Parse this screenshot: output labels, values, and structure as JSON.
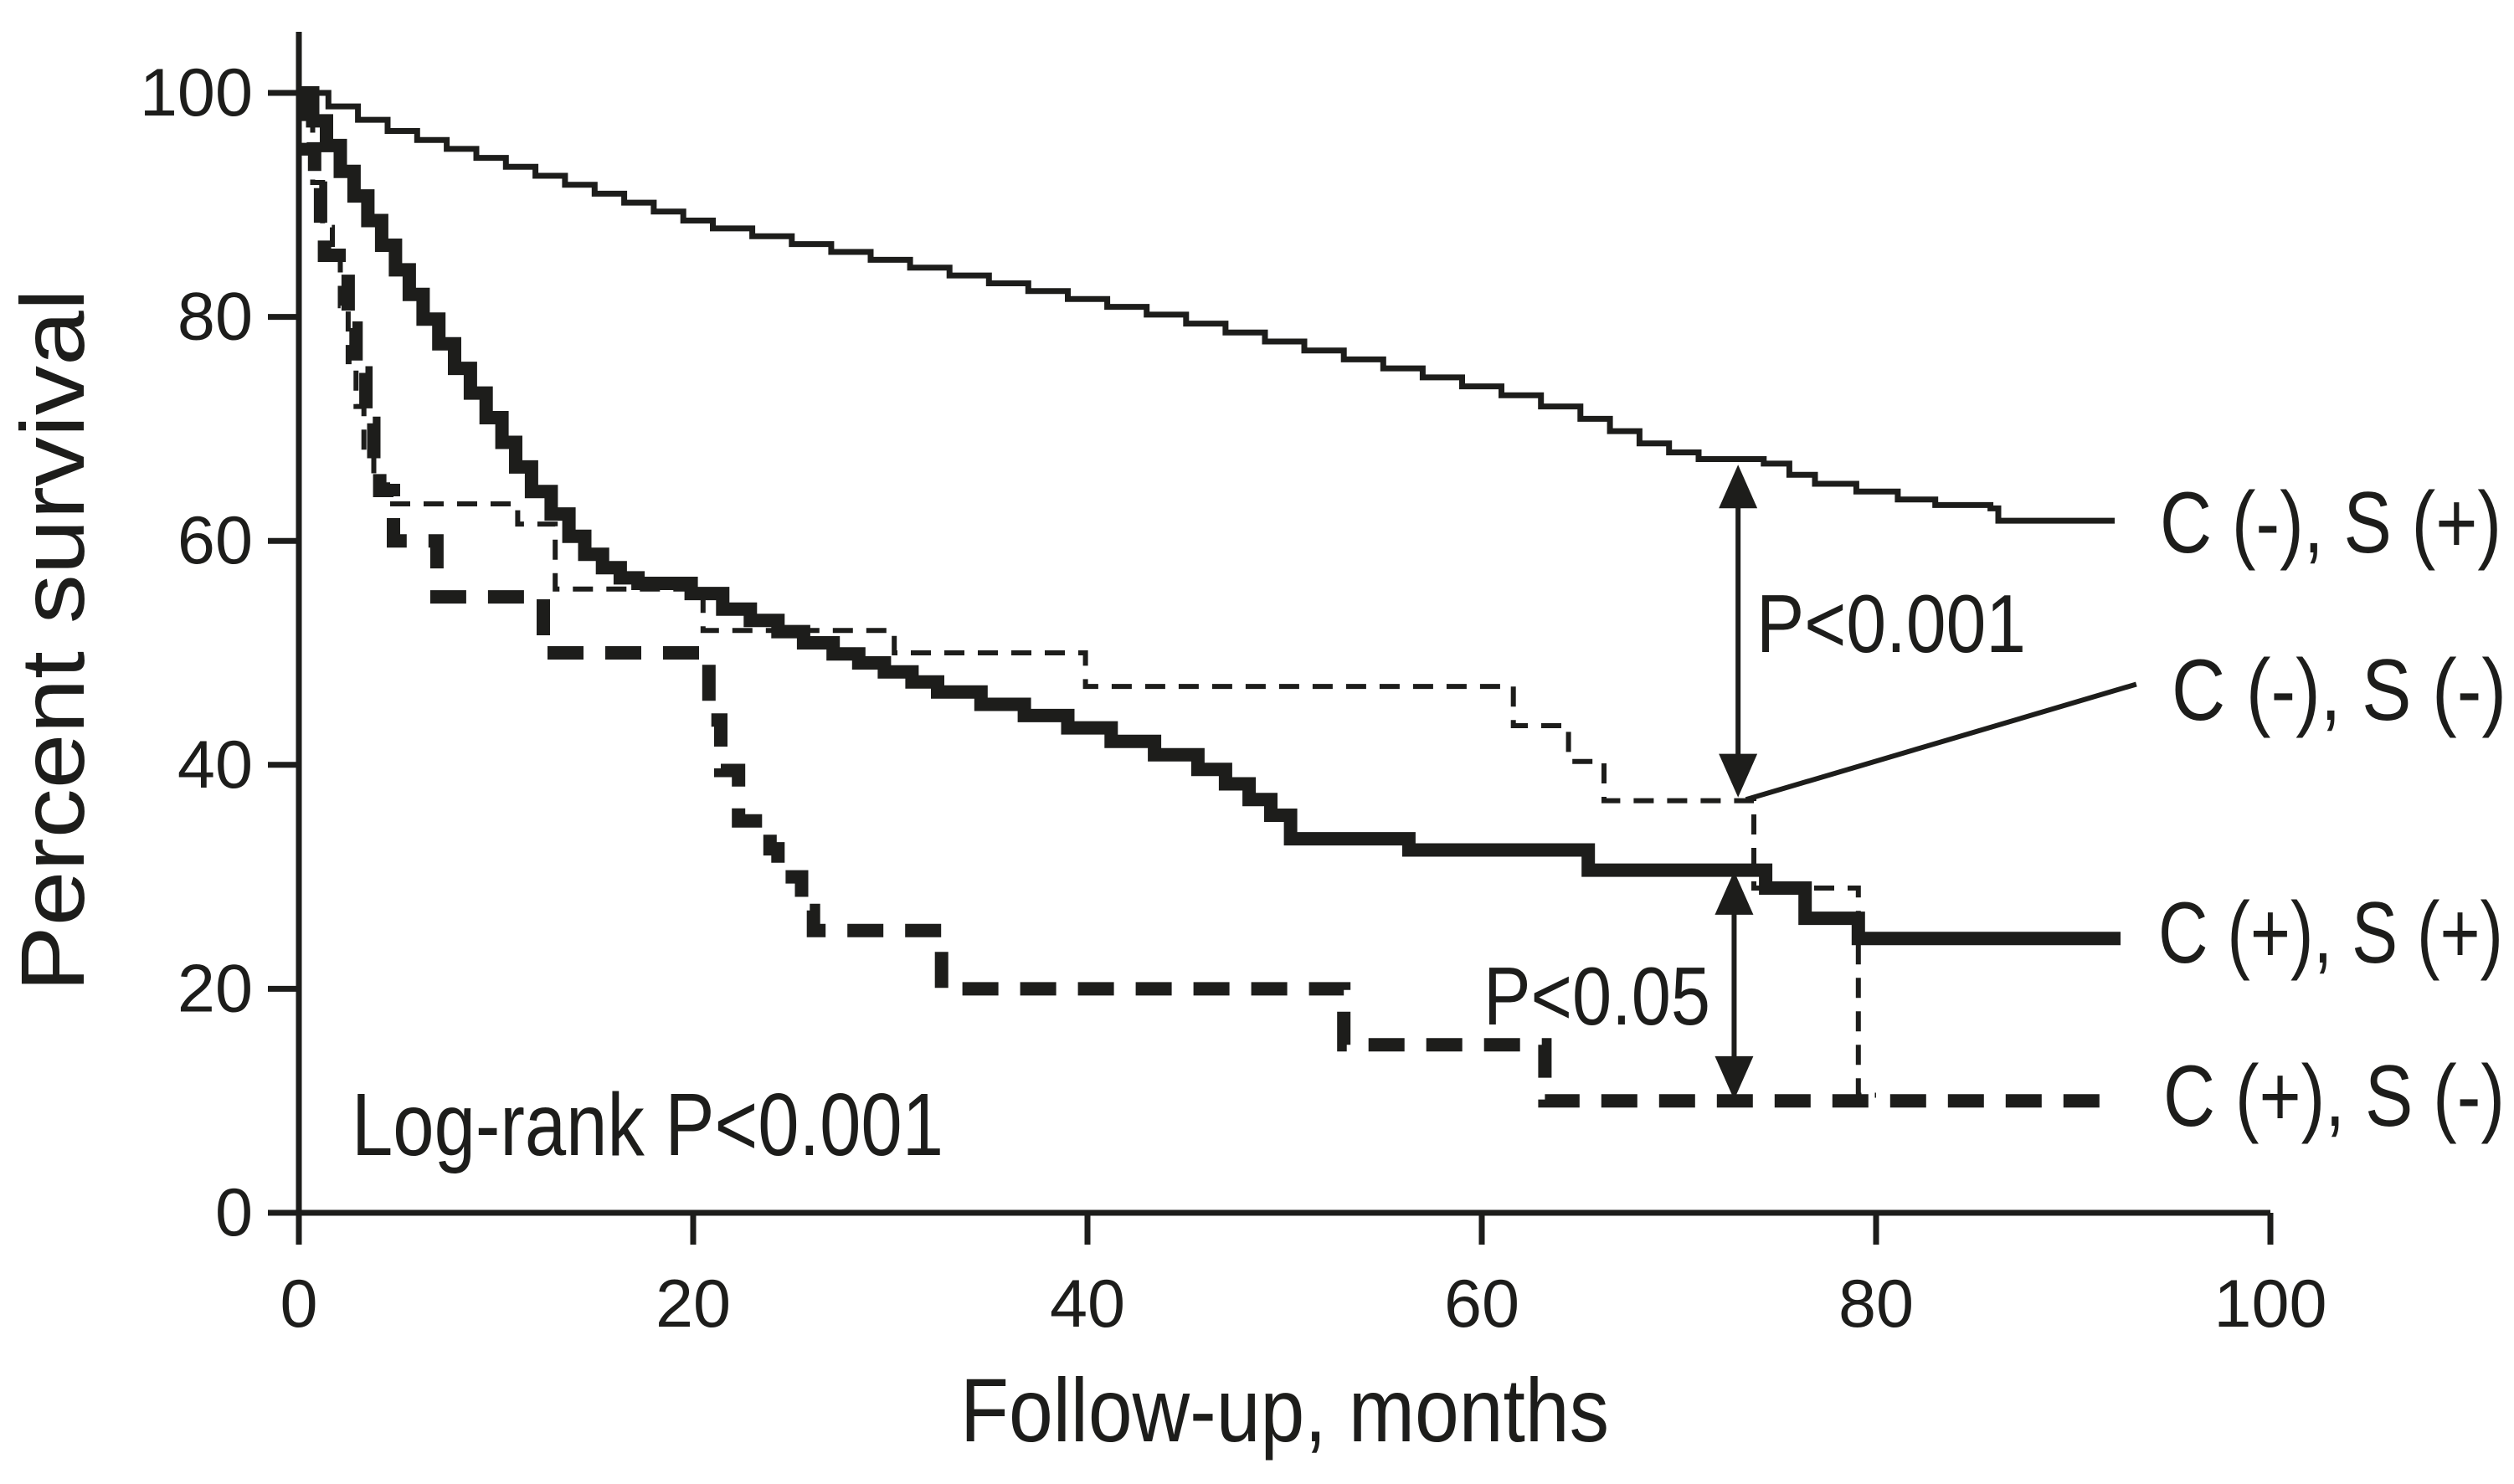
{
  "chart_data": {
    "type": "line",
    "subtype": "kaplan-meier-step",
    "title": "",
    "xlabel": "Follow-up, months",
    "ylabel": "Percent survival",
    "xlim": [
      0,
      100
    ],
    "ylim": [
      0,
      100
    ],
    "xticks": [
      0,
      20,
      40,
      60,
      80,
      100
    ],
    "yticks": [
      0,
      20,
      40,
      60,
      80,
      100
    ],
    "grid": false,
    "legend_position": "right-of-curve-ends",
    "stat_label": "Log-rank P<0.001",
    "line_color": "#1d1d1b",
    "series": [
      {
        "id": "c-neg-s-pos",
        "name": "C (-), S (+)",
        "style": "thin-solid",
        "points": [
          [
            0,
            100
          ],
          [
            1.5,
            98.8
          ],
          [
            3,
            97.6
          ],
          [
            4.5,
            96.6
          ],
          [
            6,
            95.8
          ],
          [
            7.5,
            95
          ],
          [
            9,
            94.2
          ],
          [
            10.5,
            93.4
          ],
          [
            12,
            92.6
          ],
          [
            13.5,
            91.8
          ],
          [
            15,
            91
          ],
          [
            16.5,
            90.2
          ],
          [
            18,
            89.4
          ],
          [
            19.5,
            88.6
          ],
          [
            21,
            87.9
          ],
          [
            23,
            87.2
          ],
          [
            25,
            86.5
          ],
          [
            27,
            85.8
          ],
          [
            29,
            85.1
          ],
          [
            31,
            84.4
          ],
          [
            33,
            83.7
          ],
          [
            35,
            83
          ],
          [
            37,
            82.3
          ],
          [
            39,
            81.6
          ],
          [
            41,
            80.9
          ],
          [
            43,
            80.2
          ],
          [
            45,
            79.4
          ],
          [
            47,
            78.6
          ],
          [
            49,
            77.8
          ],
          [
            51,
            77
          ],
          [
            53,
            76.2
          ],
          [
            55,
            75.4
          ],
          [
            57,
            74.6
          ],
          [
            59,
            73.8
          ],
          [
            61,
            73
          ],
          [
            63,
            72
          ],
          [
            65,
            70.9
          ],
          [
            66.5,
            69.8
          ],
          [
            68,
            68.7
          ],
          [
            69.5,
            67.9
          ],
          [
            71,
            67.3
          ],
          [
            74.3,
            66.9
          ],
          [
            75.6,
            65.9
          ],
          [
            76.9,
            65.1
          ],
          [
            79,
            64.4
          ],
          [
            81.1,
            63.7
          ],
          [
            83,
            63.2
          ],
          [
            85.8,
            62.9
          ],
          [
            86.2,
            61.8
          ],
          [
            92.1,
            61.8
          ]
        ]
      },
      {
        "id": "c-neg-s-neg",
        "name": "C (-), S (-)",
        "style": "thin-dashed",
        "points": [
          [
            0,
            100
          ],
          [
            0.7,
            92
          ],
          [
            1.2,
            88
          ],
          [
            1.7,
            86
          ],
          [
            2.1,
            81
          ],
          [
            2.5,
            76
          ],
          [
            2.9,
            72
          ],
          [
            3.3,
            68
          ],
          [
            3.8,
            65
          ],
          [
            4.5,
            63.3
          ],
          [
            11.1,
            61.5
          ],
          [
            13,
            55.7
          ],
          [
            20.5,
            52
          ],
          [
            30.2,
            50
          ],
          [
            39.9,
            47
          ],
          [
            61.6,
            43.5
          ],
          [
            64.4,
            40.3
          ],
          [
            66.2,
            36.8
          ],
          [
            73.8,
            29
          ],
          [
            79.1,
            10.5
          ],
          [
            80,
            10.5
          ]
        ]
      },
      {
        "id": "c-pos-s-pos",
        "name": "C (+), S (+)",
        "style": "thick-solid",
        "points": [
          [
            0,
            100
          ],
          [
            0.7,
            97.5
          ],
          [
            1.4,
            95.3
          ],
          [
            2.1,
            93
          ],
          [
            2.8,
            90.8
          ],
          [
            3.5,
            88.6
          ],
          [
            4.2,
            86.4
          ],
          [
            4.9,
            84.2
          ],
          [
            5.6,
            82
          ],
          [
            6.3,
            79.8
          ],
          [
            7.1,
            77.6
          ],
          [
            7.9,
            75.4
          ],
          [
            8.7,
            73.2
          ],
          [
            9.5,
            71
          ],
          [
            10.3,
            68.8
          ],
          [
            11,
            66.6
          ],
          [
            11.8,
            64.4
          ],
          [
            12.8,
            62.4
          ],
          [
            13.7,
            60.4
          ],
          [
            14.5,
            58.8
          ],
          [
            15.4,
            57.6
          ],
          [
            16.3,
            56.7
          ],
          [
            17.2,
            56.2
          ],
          [
            19.9,
            55.3
          ],
          [
            21.5,
            53.9
          ],
          [
            22.9,
            52.9
          ],
          [
            24.3,
            51.9
          ],
          [
            25.6,
            50.9
          ],
          [
            27.1,
            49.9
          ],
          [
            28.4,
            49.1
          ],
          [
            29.7,
            48.3
          ],
          [
            31.1,
            47.4
          ],
          [
            32.4,
            46.5
          ],
          [
            34.6,
            45.4
          ],
          [
            36.8,
            44.4
          ],
          [
            39,
            43.3
          ],
          [
            41.2,
            42.1
          ],
          [
            43.4,
            40.9
          ],
          [
            45.6,
            39.6
          ],
          [
            47,
            38.3
          ],
          [
            48.2,
            36.9
          ],
          [
            49.3,
            35.5
          ],
          [
            50.3,
            33.4
          ],
          [
            56.3,
            32.4
          ],
          [
            65.4,
            30.6
          ],
          [
            74.4,
            29
          ],
          [
            76.4,
            26.3
          ],
          [
            79.1,
            24.5
          ],
          [
            92.4,
            24.5
          ]
        ]
      },
      {
        "id": "c-pos-s-neg",
        "name": "C (+), S (-)",
        "style": "thick-dashed",
        "points": [
          [
            0,
            100
          ],
          [
            0.4,
            95
          ],
          [
            0.8,
            91.5
          ],
          [
            1.1,
            88
          ],
          [
            1.3,
            85.5
          ],
          [
            2.5,
            79
          ],
          [
            2.9,
            75
          ],
          [
            3.4,
            70.5
          ],
          [
            3.8,
            66
          ],
          [
            4.1,
            64.5
          ],
          [
            4.8,
            60
          ],
          [
            7,
            55
          ],
          [
            12.4,
            50
          ],
          [
            20.8,
            44
          ],
          [
            21.4,
            39.5
          ],
          [
            22.3,
            35
          ],
          [
            23.9,
            32.5
          ],
          [
            24.3,
            30
          ],
          [
            25.5,
            27
          ],
          [
            26.1,
            25.2
          ],
          [
            32.6,
            20
          ],
          [
            53,
            15
          ],
          [
            63.2,
            10
          ],
          [
            92.4,
            10
          ]
        ]
      }
    ],
    "annotations": [
      {
        "label": "P<0.001",
        "x_month": 73.0,
        "from_pct": 66.8,
        "to_pct": 37.1
      },
      {
        "label": "P<0.05",
        "x_month": 72.8,
        "from_pct": 30.5,
        "to_pct": 10.1
      }
    ],
    "pointer_line": {
      "from_month": 73.4,
      "from_pct": 36.9,
      "to_month": 93.2,
      "to_pct": 47.2
    }
  }
}
